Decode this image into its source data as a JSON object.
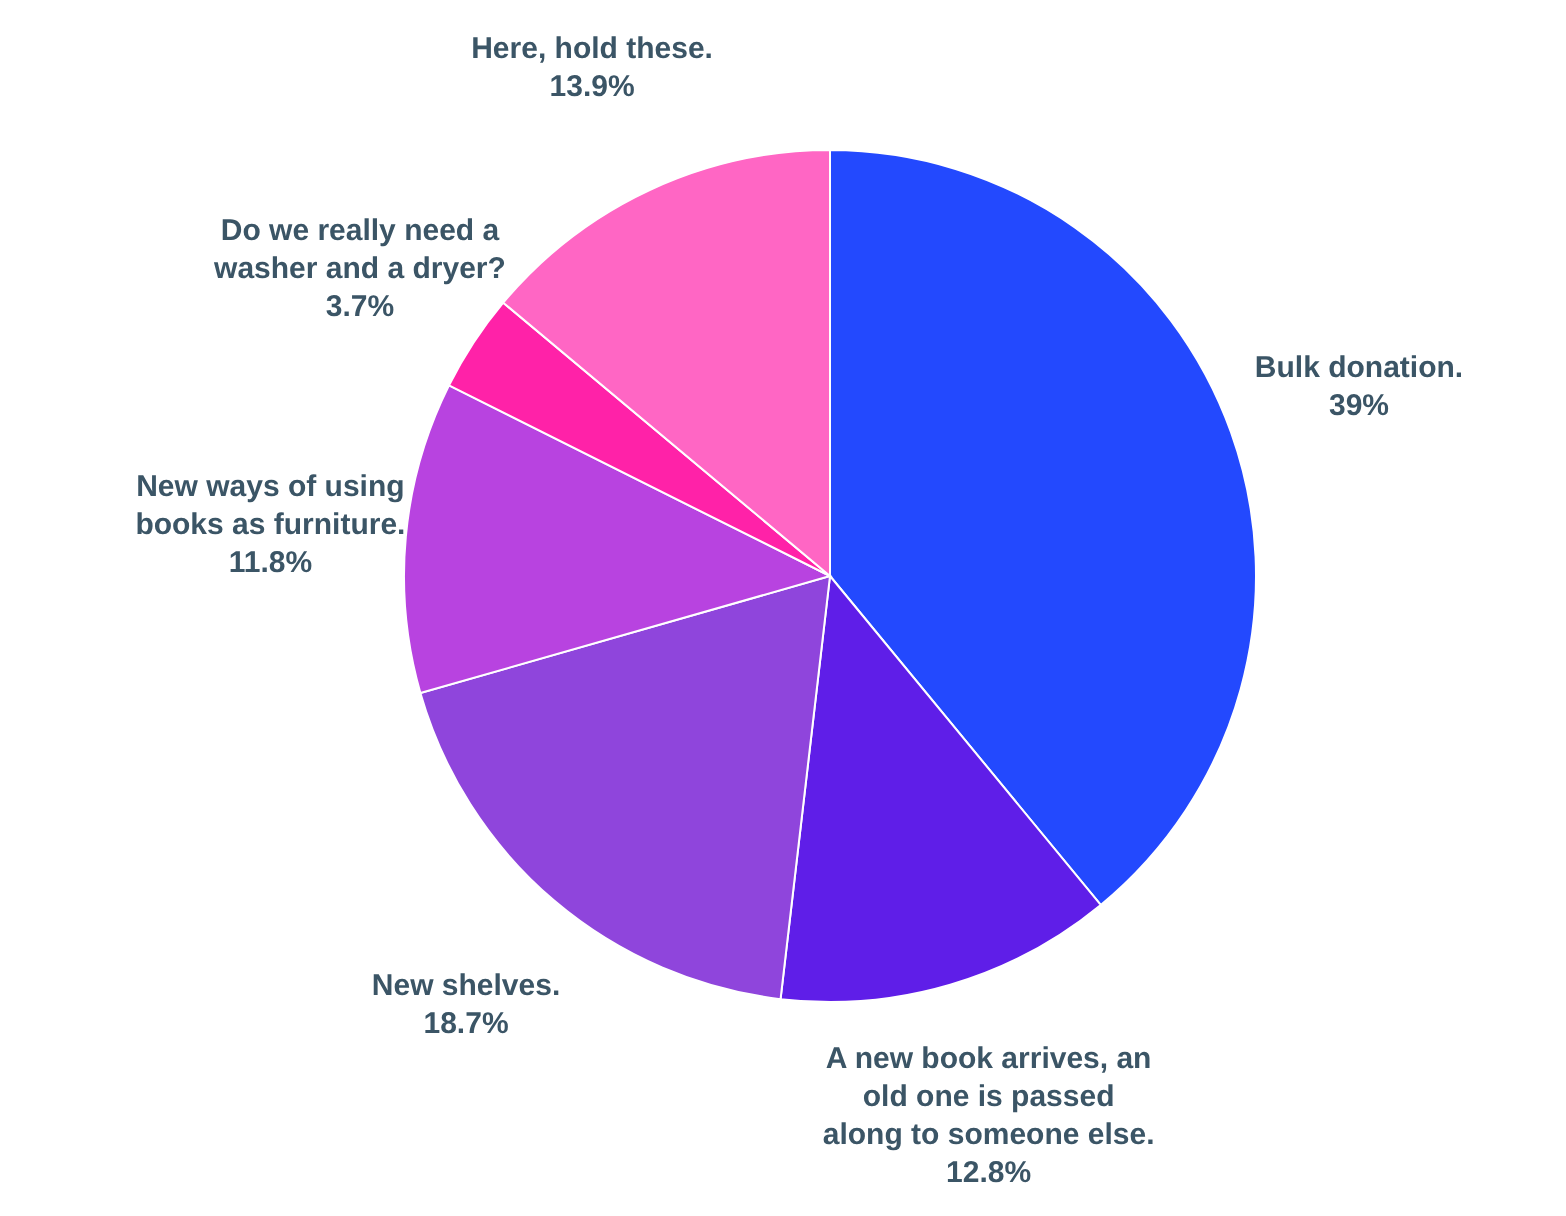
{
  "chart_data": {
    "type": "pie",
    "categories": [
      "Bulk donation.",
      "A new book arrives, an old one is passed along to someone else.",
      "New shelves.",
      "New ways of using books as furniture.",
      "Do we really need a washer and a dryer?",
      "Here, hold these."
    ],
    "values": [
      39,
      12.8,
      18.7,
      11.8,
      3.7,
      13.9
    ],
    "value_labels": [
      "39%",
      "12.8%",
      "18.7%",
      "11.8%",
      "3.7%",
      "13.9%"
    ],
    "colors": [
      "#2349fe",
      "#5f1ee8",
      "#8f45dc",
      "#b843e0",
      "#ff22a8",
      "#ff66c4"
    ]
  }
}
